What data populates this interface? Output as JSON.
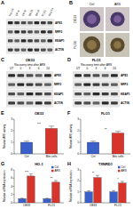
{
  "blots": [
    {
      "panel": "A",
      "lanes": [
        "Het-1A",
        "CP-A",
        "CP-B",
        "OE33",
        "OE19",
        "FLO1",
        "SKGT4"
      ],
      "rows": [
        "APE1",
        "NRF2",
        "KEAP1",
        "ACTIN"
      ]
    },
    {
      "panel": "C",
      "title": "OE33",
      "subtitle": "Recovery time after ARS",
      "lanes": [
        "UT",
        "0",
        "3",
        "6",
        "24"
      ],
      "rows": [
        "APE1",
        "NRF2",
        "KEAP1",
        "ACTIN"
      ]
    },
    {
      "panel": "D",
      "title": "FLO1",
      "subtitle": "Recovery time after ARS",
      "lanes": [
        "UT",
        "0",
        "3",
        "6",
        "24"
      ],
      "rows": [
        "APE1",
        "NRF2",
        "KEAP1",
        "ACTIN"
      ]
    }
  ],
  "images": {
    "panel": "B",
    "rows": [
      "OE33",
      "FLO1"
    ],
    "columns": [
      "Ctrl",
      "ARS"
    ]
  },
  "chart_data": [
    {
      "panel": "E",
      "type": "bar",
      "title": "OE33",
      "y_label": "Relative ARE activity",
      "categories": [
        "Ctrl",
        "Bile cells"
      ],
      "values": [
        1,
        2.2
      ],
      "errors": [
        0.1,
        0.2
      ],
      "colors": [
        "#3b5fc9",
        "#d7352b"
      ],
      "ylim": [
        0,
        3
      ],
      "yticks": [
        0,
        1,
        2,
        3
      ],
      "annotations": [
        "***"
      ]
    },
    {
      "panel": "F",
      "type": "bar",
      "title": "FLO1",
      "y_label": "Relative ARE activity",
      "categories": [
        "Ctrl",
        "Bile cells"
      ],
      "values": [
        1,
        1.8
      ],
      "errors": [
        0.1,
        0.15
      ],
      "colors": [
        "#3b5fc9",
        "#d7352b"
      ],
      "ylim": [
        0,
        3
      ],
      "yticks": [
        0,
        1,
        2,
        3
      ],
      "annotations": [
        "**"
      ]
    },
    {
      "panel": "G",
      "type": "bar",
      "title": "HO-1",
      "y_label": "Relative mRNA expression",
      "categories": [
        "OE33",
        "FLO1"
      ],
      "series": [
        {
          "name": "Ctrl",
          "color": "#3b5fc9",
          "values": [
            1,
            1
          ],
          "errors": [
            0.1,
            0.1
          ]
        },
        {
          "name": "ARS",
          "color": "#d7352b",
          "values": [
            6.5,
            5
          ],
          "errors": [
            0.5,
            0.4
          ]
        }
      ],
      "ylim": [
        0,
        8
      ],
      "yticks": [
        0,
        2,
        4,
        6,
        8
      ],
      "legend": "upper right",
      "annotations": [
        "***",
        "**"
      ]
    },
    {
      "panel": "H",
      "type": "bar",
      "title": "TXNRD1",
      "y_label": "Relative mRNA expression",
      "categories": [
        "OE33",
        "FLO1"
      ],
      "series": [
        {
          "name": "Ctrl",
          "color": "#3b5fc9",
          "values": [
            1,
            1
          ],
          "errors": [
            0.1,
            0.1
          ]
        },
        {
          "name": "ARS",
          "color": "#d7352b",
          "values": [
            2.3,
            1.8
          ],
          "errors": [
            0.2,
            0.15
          ]
        }
      ],
      "ylim": [
        0,
        3
      ],
      "yticks": [
        0,
        1,
        2,
        3
      ],
      "legend": "upper right",
      "annotations": [
        "**",
        "*"
      ]
    }
  ]
}
